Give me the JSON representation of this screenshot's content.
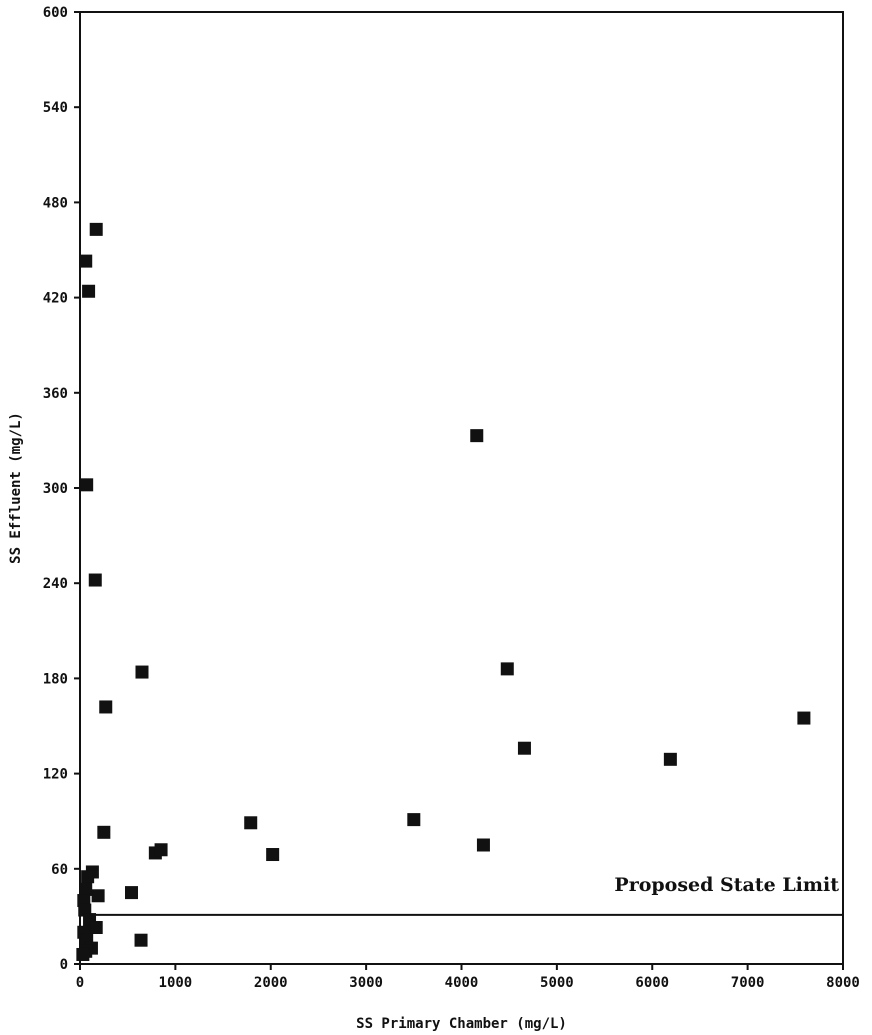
{
  "chart_data": {
    "type": "scatter",
    "title": "",
    "xlabel": "SS Primary Chamber (mg/L)",
    "ylabel": "SS Effluent (mg/L)",
    "xlim": [
      0,
      8000
    ],
    "ylim": [
      0,
      600
    ],
    "x_ticks": [
      0,
      1000,
      2000,
      3000,
      4000,
      5000,
      6000,
      7000,
      8000
    ],
    "y_ticks": [
      0,
      60,
      120,
      180,
      240,
      300,
      360,
      420,
      480,
      540,
      600
    ],
    "grid": false,
    "marker_color": "#111111",
    "reference_line": {
      "y": 31,
      "label": "Proposed State Limit"
    },
    "points": [
      {
        "x": 60,
        "y": 443
      },
      {
        "x": 90,
        "y": 424
      },
      {
        "x": 170,
        "y": 463
      },
      {
        "x": 70,
        "y": 302
      },
      {
        "x": 160,
        "y": 242
      },
      {
        "x": 650,
        "y": 184
      },
      {
        "x": 270,
        "y": 162
      },
      {
        "x": 250,
        "y": 83
      },
      {
        "x": 4160,
        "y": 333
      },
      {
        "x": 4480,
        "y": 186
      },
      {
        "x": 4660,
        "y": 136
      },
      {
        "x": 6190,
        "y": 129
      },
      {
        "x": 7590,
        "y": 155
      },
      {
        "x": 1790,
        "y": 89
      },
      {
        "x": 3500,
        "y": 91
      },
      {
        "x": 4230,
        "y": 75
      },
      {
        "x": 2020,
        "y": 69
      },
      {
        "x": 790,
        "y": 70
      },
      {
        "x": 850,
        "y": 72
      },
      {
        "x": 540,
        "y": 45
      },
      {
        "x": 130,
        "y": 58
      },
      {
        "x": 80,
        "y": 55
      },
      {
        "x": 190,
        "y": 43
      },
      {
        "x": 60,
        "y": 47
      },
      {
        "x": 40,
        "y": 40
      },
      {
        "x": 50,
        "y": 34
      },
      {
        "x": 100,
        "y": 28
      },
      {
        "x": 170,
        "y": 23
      },
      {
        "x": 40,
        "y": 20
      },
      {
        "x": 70,
        "y": 15
      },
      {
        "x": 120,
        "y": 10
      },
      {
        "x": 60,
        "y": 8
      },
      {
        "x": 30,
        "y": 6
      },
      {
        "x": 640,
        "y": 15
      }
    ]
  }
}
